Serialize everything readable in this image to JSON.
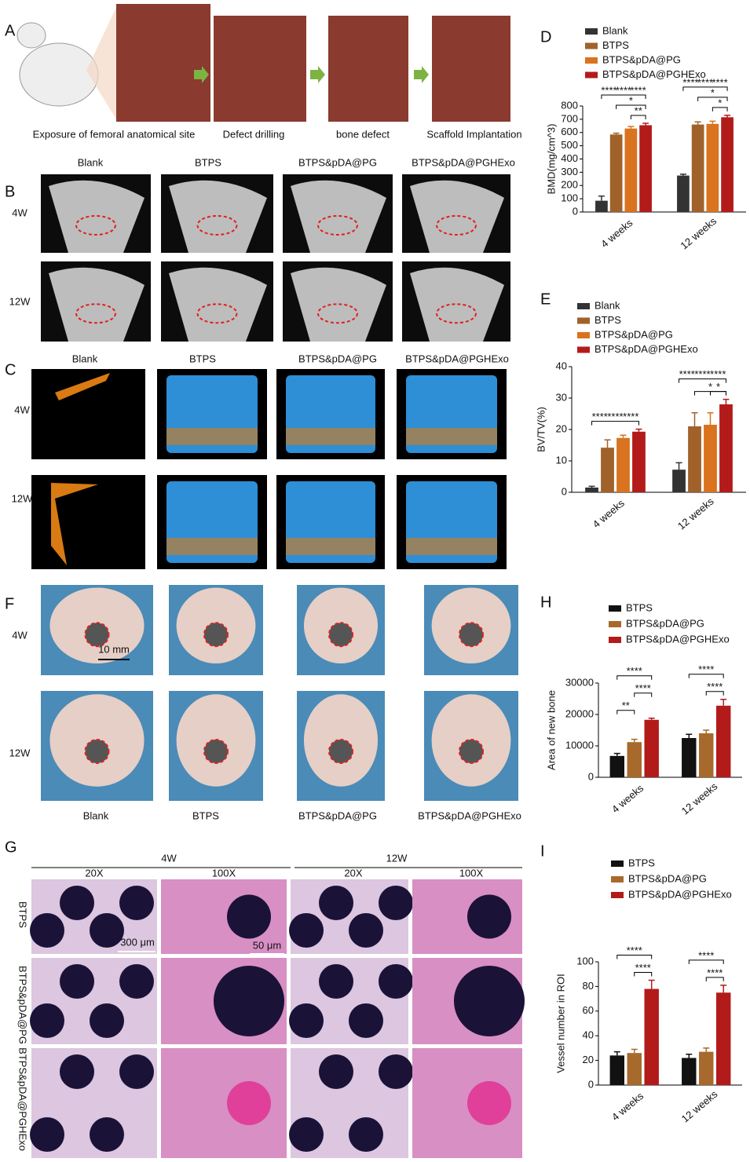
{
  "panel_labels": [
    "A",
    "B",
    "C",
    "F",
    "G"
  ],
  "panel_a": {
    "captions": [
      "Exposure of femoral anatomical site",
      "Defect drilling",
      "bone defect",
      "Scaffold Implantation"
    ]
  },
  "panel_b": {
    "columns": [
      "Blank",
      "BTPS",
      "BTPS&pDA@PG",
      "BTPS&pDA@PGHExo"
    ],
    "rows": [
      "4W",
      "12W"
    ]
  },
  "panel_c": {
    "columns": [
      "Blank",
      "BTPS",
      "BTPS&pDA@PG",
      "BTPS&pDA@PGHExo"
    ],
    "rows": [
      "4W",
      "12W"
    ]
  },
  "panel_f": {
    "columns": [
      "Blank",
      "BTPS",
      "BTPS&pDA@PG",
      "BTPS&pDA@PGHExo"
    ],
    "rows": [
      "4W",
      "12W"
    ],
    "scale": "10 mm"
  },
  "panel_g": {
    "times": [
      "4W",
      "12W"
    ],
    "magnifications": [
      "20X",
      "100X",
      "20X",
      "100X"
    ],
    "rows": [
      "BTPS",
      "BTPS&pDA@PG",
      "BTPS&pDA@PGHExo"
    ],
    "scales": [
      "300 μm",
      "50 μm"
    ]
  },
  "chart_data": [
    {
      "type": "bar",
      "panel": "D",
      "ylabel": "BMD(mg/cm^3)",
      "categories": [
        "4 weeks",
        "12 weeks"
      ],
      "series": [
        {
          "name": "Blank",
          "color": "#333333",
          "values": [
            85,
            275
          ],
          "errors": [
            35,
            10
          ]
        },
        {
          "name": "BTPS",
          "color": "#a0622a",
          "values": [
            585,
            660
          ],
          "errors": [
            10,
            20
          ]
        },
        {
          "name": "BTPS&pDA@PG",
          "color": "#d9731f",
          "values": [
            630,
            665
          ],
          "errors": [
            15,
            20
          ]
        },
        {
          "name": "BTPS&pDA@PGHExo",
          "color": "#b31b1b",
          "values": [
            655,
            715
          ],
          "errors": [
            15,
            15
          ]
        }
      ],
      "ylim": [
        0,
        800
      ],
      "yticks": [
        0,
        100,
        200,
        300,
        400,
        500,
        600,
        700,
        800
      ],
      "annotations": [
        "****",
        "****",
        "****",
        "*",
        "**",
        "****",
        "****",
        "****",
        "*",
        "*"
      ]
    },
    {
      "type": "bar",
      "panel": "E",
      "ylabel": "BV/TV(%)",
      "categories": [
        "4 weeks",
        "12 weeks"
      ],
      "series": [
        {
          "name": "Blank",
          "color": "#333333",
          "values": [
            1.5,
            7.2
          ],
          "errors": [
            0.4,
            2.2
          ]
        },
        {
          "name": "BTPS",
          "color": "#a0622a",
          "values": [
            14.2,
            21
          ],
          "errors": [
            2.5,
            4.3
          ]
        },
        {
          "name": "BTPS&pDA@PG",
          "color": "#d9731f",
          "values": [
            17.3,
            21.5
          ],
          "errors": [
            0.9,
            3.8
          ]
        },
        {
          "name": "BTPS&pDA@PGHExo",
          "color": "#b31b1b",
          "values": [
            19.3,
            28
          ],
          "errors": [
            0.8,
            1.6
          ]
        }
      ],
      "ylim": [
        0,
        40
      ],
      "yticks": [
        0,
        10,
        20,
        30,
        40
      ],
      "annotations": [
        "****",
        "****",
        "****",
        "****",
        "****",
        "****",
        "*",
        "*"
      ]
    },
    {
      "type": "bar",
      "panel": "H",
      "ylabel": "Area of new bone",
      "categories": [
        "4 weeks",
        "12 weeks"
      ],
      "series": [
        {
          "name": "BTPS",
          "color": "#111111",
          "values": [
            6800,
            12500
          ],
          "errors": [
            800,
            1200
          ]
        },
        {
          "name": "BTPS&pDA@PG",
          "color": "#a8692c",
          "values": [
            11200,
            14000
          ],
          "errors": [
            900,
            1000
          ]
        },
        {
          "name": "BTPS&pDA@PGHExo",
          "color": "#b31b1b",
          "values": [
            18300,
            22800
          ],
          "errors": [
            500,
            2000
          ]
        }
      ],
      "ylim": [
        0,
        30000
      ],
      "yticks": [
        0,
        10000,
        20000,
        30000
      ],
      "annotations": [
        "****",
        "****",
        "**",
        "****",
        "****"
      ]
    },
    {
      "type": "bar",
      "panel": "I",
      "ylabel": "Vessel number in ROI",
      "categories": [
        "4 weeks",
        "12 weeks"
      ],
      "series": [
        {
          "name": "BTPS",
          "color": "#111111",
          "values": [
            24,
            22
          ],
          "errors": [
            3,
            3
          ]
        },
        {
          "name": "BTPS&pDA@PG",
          "color": "#a8692c",
          "values": [
            26,
            27
          ],
          "errors": [
            3,
            3
          ]
        },
        {
          "name": "BTPS&pDA@PGHExo",
          "color": "#b31b1b",
          "values": [
            78,
            75
          ],
          "errors": [
            7,
            6
          ]
        }
      ],
      "ylim": [
        0,
        100
      ],
      "yticks": [
        0,
        20,
        40,
        60,
        80,
        100
      ],
      "annotations": [
        "****",
        "****",
        "****",
        "****"
      ]
    }
  ]
}
